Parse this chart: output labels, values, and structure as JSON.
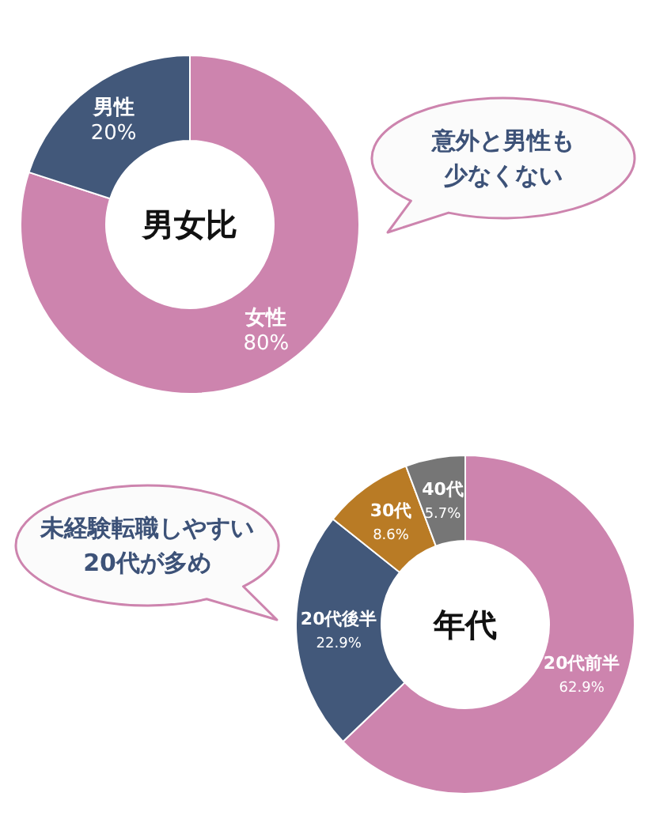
{
  "chart_data": [
    {
      "type": "donut",
      "title": "男女比",
      "categories": [
        "女性",
        "男性"
      ],
      "values": [
        80,
        20
      ],
      "colors": [
        "#cd84ae",
        "#42587a"
      ],
      "value_labels": [
        "80%",
        "20%"
      ],
      "annotations": [
        "意外と男性も",
        "少なくない"
      ]
    },
    {
      "type": "donut",
      "title": "年代",
      "categories": [
        "20代前半",
        "20代後半",
        "30代",
        "40代"
      ],
      "values": [
        62.9,
        22.9,
        8.6,
        5.7
      ],
      "colors": [
        "#cd84ae",
        "#42587a",
        "#b97b25",
        "#767676"
      ],
      "value_labels": [
        "62.9%",
        "22.9%",
        "8.6%",
        "5.7%"
      ],
      "annotations": [
        "未経験転職しやすい",
        "20代が多め"
      ]
    }
  ]
}
